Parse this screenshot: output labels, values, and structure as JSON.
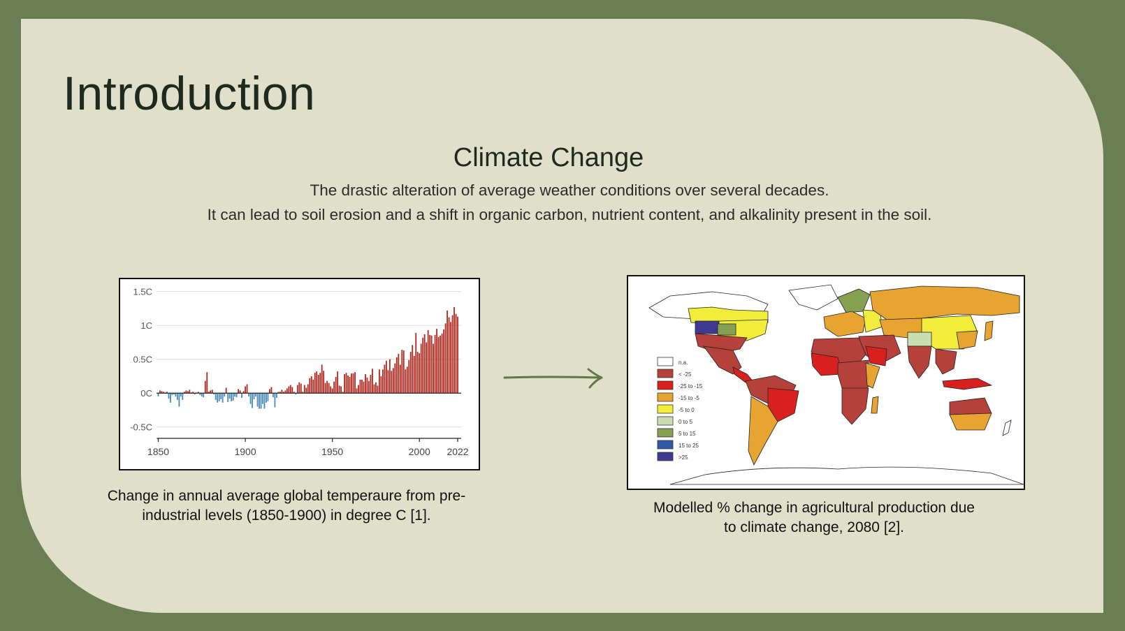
{
  "slide": {
    "title": "Introduction",
    "subtitle": "Climate Change",
    "body_lines": [
      "The drastic alteration of average weather conditions over several decades.",
      "It can lead to soil erosion and a shift in organic carbon, nutrient content, and alkalinity present in the soil."
    ],
    "colors": {
      "background": "#6a7d53",
      "panel": "#e0dfca",
      "text": "#1f2a1f",
      "positive_bar": "#b3261e",
      "negative_bar": "#4a8ab8",
      "arrow": "#5f7a45"
    }
  },
  "figures": {
    "left_caption": "Change in annual average global temperaure from pre-industrial levels (1850-1900) in degree C [1].",
    "right_caption": "Modelled % change in agricultural production due to climate change, 2080 [2].",
    "arrow_icon": "arrow-right-icon"
  },
  "chart_data": {
    "type": "bar",
    "title": "",
    "xlabel": "",
    "ylabel": "",
    "y_tick_labels": [
      "1.5C",
      "1C",
      "0.5C",
      "0C",
      "-0.5C"
    ],
    "y_ticks": [
      1.5,
      1,
      0.5,
      0,
      -0.5
    ],
    "x_tick_labels": [
      "1850",
      "1900",
      "1950",
      "2000",
      "2022"
    ],
    "x_ticks": [
      1850,
      1900,
      1950,
      2000,
      2022
    ],
    "ylim": [
      -0.75,
      1.6
    ],
    "xlim": [
      1849,
      2024
    ],
    "grid": true,
    "x": [
      1850,
      1851,
      1852,
      1853,
      1854,
      1855,
      1856,
      1857,
      1858,
      1859,
      1860,
      1861,
      1862,
      1863,
      1864,
      1865,
      1866,
      1867,
      1868,
      1869,
      1870,
      1871,
      1872,
      1873,
      1874,
      1875,
      1876,
      1877,
      1878,
      1879,
      1880,
      1881,
      1882,
      1883,
      1884,
      1885,
      1886,
      1887,
      1888,
      1889,
      1890,
      1891,
      1892,
      1893,
      1894,
      1895,
      1896,
      1897,
      1898,
      1899,
      1900,
      1901,
      1902,
      1903,
      1904,
      1905,
      1906,
      1907,
      1908,
      1909,
      1910,
      1911,
      1912,
      1913,
      1914,
      1915,
      1916,
      1917,
      1918,
      1919,
      1920,
      1921,
      1922,
      1923,
      1924,
      1925,
      1926,
      1927,
      1928,
      1929,
      1930,
      1931,
      1932,
      1933,
      1934,
      1935,
      1936,
      1937,
      1938,
      1939,
      1940,
      1941,
      1942,
      1943,
      1944,
      1945,
      1946,
      1947,
      1948,
      1949,
      1950,
      1951,
      1952,
      1953,
      1954,
      1955,
      1956,
      1957,
      1958,
      1959,
      1960,
      1961,
      1962,
      1963,
      1964,
      1965,
      1966,
      1967,
      1968,
      1969,
      1970,
      1971,
      1972,
      1973,
      1974,
      1975,
      1976,
      1977,
      1978,
      1979,
      1980,
      1981,
      1982,
      1983,
      1984,
      1985,
      1986,
      1987,
      1988,
      1989,
      1990,
      1991,
      1992,
      1993,
      1994,
      1995,
      1996,
      1997,
      1998,
      1999,
      2000,
      2001,
      2002,
      2003,
      2004,
      2005,
      2006,
      2007,
      2008,
      2009,
      2010,
      2011,
      2012,
      2013,
      2014,
      2015,
      2016,
      2017,
      2018,
      2019,
      2020,
      2021,
      2022
    ],
    "values": [
      -0.05,
      0.04,
      0.03,
      0.02,
      0.01,
      0.02,
      -0.08,
      -0.14,
      -0.03,
      -0.02,
      -0.05,
      -0.1,
      -0.2,
      -0.05,
      -0.1,
      0.02,
      0.04,
      0.03,
      0.05,
      0.01,
      0.02,
      -0.02,
      0.01,
      0.02,
      -0.03,
      -0.05,
      -0.06,
      0.18,
      0.31,
      0.02,
      0.04,
      0.05,
      -0.02,
      -0.1,
      -0.14,
      -0.12,
      -0.09,
      -0.14,
      -0.05,
      0.08,
      -0.13,
      -0.08,
      -0.12,
      -0.11,
      -0.05,
      -0.06,
      0.06,
      0.04,
      -0.07,
      0.03,
      0.1,
      0.13,
      -0.05,
      -0.16,
      -0.22,
      -0.09,
      -0.05,
      -0.2,
      -0.23,
      -0.23,
      -0.16,
      -0.23,
      -0.14,
      -0.12,
      0.06,
      0.09,
      -0.06,
      -0.21,
      -0.07,
      0.02,
      0.02,
      0.05,
      0.02,
      0.04,
      0.07,
      0.1,
      0.12,
      0.09,
      0.02,
      -0.02,
      0.12,
      0.16,
      0.14,
      0.02,
      0.12,
      0.08,
      0.13,
      0.22,
      0.25,
      0.2,
      0.3,
      0.32,
      0.27,
      0.3,
      0.42,
      0.33,
      0.15,
      0.18,
      0.15,
      0.1,
      0.07,
      0.17,
      0.24,
      0.32,
      0.11,
      0.1,
      0.02,
      0.28,
      0.3,
      0.26,
      0.24,
      0.29,
      0.29,
      0.31,
      0.07,
      0.12,
      0.2,
      0.2,
      0.17,
      0.28,
      0.23,
      0.18,
      0.27,
      0.36,
      0.13,
      0.16,
      0.11,
      0.35,
      0.25,
      0.35,
      0.42,
      0.48,
      0.34,
      0.5,
      0.33,
      0.37,
      0.44,
      0.53,
      0.58,
      0.42,
      0.64,
      0.63,
      0.35,
      0.39,
      0.49,
      0.61,
      0.71,
      0.55,
      0.89,
      0.61,
      0.59,
      0.73,
      0.82,
      0.87,
      0.75,
      0.93,
      0.86,
      0.85,
      0.73,
      0.86,
      0.95,
      0.83,
      0.85,
      0.88,
      0.94,
      1.03,
      1.22,
      1.12,
      1.05,
      1.15,
      1.27,
      1.17,
      1.13
    ]
  },
  "map": {
    "legend": [
      {
        "label": "n.a.",
        "color": "#ffffff"
      },
      {
        "label": "< -25",
        "color": "#b5413a"
      },
      {
        "label": "-25 to -15",
        "color": "#d8211f"
      },
      {
        "label": "-15 to -5",
        "color": "#e8a431"
      },
      {
        "label": "-5 to 0",
        "color": "#f2ec3b"
      },
      {
        "label": "0 to 5",
        "color": "#c9dfb2"
      },
      {
        "label": "5 to 15",
        "color": "#86a052"
      },
      {
        "label": "15 to 25",
        "color": "#2f5aa8"
      },
      {
        "label": ">25",
        "color": "#3f3a92"
      }
    ]
  }
}
